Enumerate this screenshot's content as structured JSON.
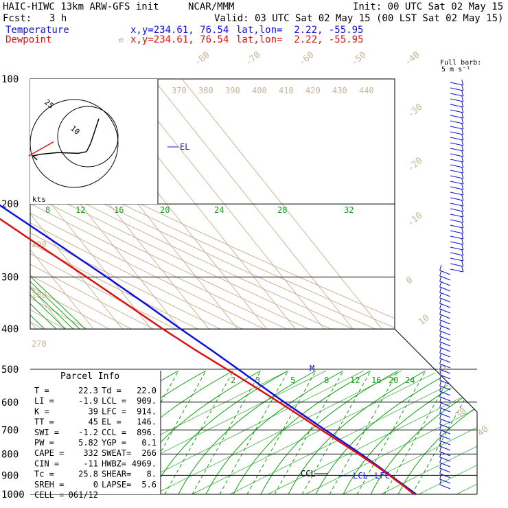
{
  "header": {
    "model": "HAIC-HIWC 13km ARW-GFS init",
    "org": "NCAR/MMM",
    "init": "Init: 00 UTC Sat 02 May 15",
    "fcst_label": "Fcst:",
    "fcst_value": "3 h",
    "valid": "Valid: 03 UTC Sat 02 May 15 (00 LST Sat 02 May 15)",
    "temp_label": "Temperature",
    "temp_xy": "x,y=234.61, 76.54",
    "temp_latlon": "lat,lon=  2.22, -55.95",
    "dew_label": "Dewpoint",
    "dew_marker": "☆",
    "dew_xy": "x,y=234.61, 76.54",
    "dew_latlon": "lat,lon=  2.22, -55.95"
  },
  "colors": {
    "temperature": "#e01010",
    "dewpoint": "#1010e0",
    "mixing_ratio": "#10a010",
    "dry_adiabat": "#c8b496",
    "isotherm": "#c8b496",
    "isobar": "#000000"
  },
  "barb_legend": {
    "line1": "Full barb:",
    "line2": "5 m s⁻¹"
  },
  "parcel": {
    "title": "Parcel Info",
    "rows": [
      [
        "T  =",
        "22.3",
        "Td =",
        "22.0"
      ],
      [
        "LI =",
        "-1.9",
        "LCL =",
        "909."
      ],
      [
        "K  =",
        "39",
        "LFC =",
        "914."
      ],
      [
        "TT =",
        "45",
        "EL  =",
        "146."
      ],
      [
        "SWI =",
        "-1.2",
        "CCL =",
        "896."
      ],
      [
        "PW =",
        "5.82",
        "YGP =",
        "0.1"
      ],
      [
        "CAPE =",
        "332",
        "SWEAT=",
        "266"
      ],
      [
        "CIN =",
        "-11",
        "HWBZ=",
        "4969."
      ],
      [
        "Tc =",
        "25.8",
        "SHEAR=",
        "8."
      ],
      [
        "SREH =",
        "0",
        "LAPSE=",
        "5.6"
      ],
      [
        "CELL =",
        "061/12",
        "",
        ""
      ]
    ]
  },
  "markers": {
    "el": "EL",
    "m": "M",
    "ccl": "CCL",
    "lcl": "LCL",
    "lfc": "LFC"
  },
  "hodograph": {
    "rings": [
      "25",
      "10"
    ],
    "unit": "kts"
  },
  "chart_data": {
    "type": "line",
    "title": "",
    "pressure_ticks": [
      "100",
      "200",
      "300",
      "400",
      "500",
      "600",
      "700",
      "800",
      "900",
      "1000"
    ],
    "isotherm_labels": [
      "-80",
      "-70",
      "-60",
      "-50",
      "-40",
      "-30",
      "-20",
      "-10",
      "0",
      "10",
      "20",
      "30",
      "40"
    ],
    "theta_labels_top": [
      "370",
      "380",
      "390",
      "400",
      "410",
      "420",
      "430",
      "440"
    ],
    "theta_labels_left": [
      "290",
      "280",
      "270"
    ],
    "mixing_upper_labels": [
      "8",
      "12",
      "16",
      "20",
      "24",
      "28",
      "32"
    ],
    "mixing_lower_labels": [
      "2",
      "3",
      "5",
      "8",
      "12",
      "16",
      "20",
      "24"
    ],
    "ylim": [
      1000,
      100
    ],
    "y_scale": "log-pressure",
    "series": [
      {
        "name": "Temperature",
        "points": [
          [
            1000,
            26.0
          ],
          [
            950,
            24.2
          ],
          [
            925,
            23.2
          ],
          [
            900,
            22.3
          ],
          [
            850,
            20.3
          ],
          [
            800,
            18.0
          ],
          [
            750,
            15.3
          ],
          [
            700,
            12.3
          ],
          [
            650,
            9.2
          ],
          [
            600,
            5.8
          ],
          [
            550,
            2.5
          ],
          [
            500,
            -1.0
          ],
          [
            450,
            -5.0
          ],
          [
            400,
            -9.8
          ],
          [
            350,
            -14.8
          ],
          [
            300,
            -21.0
          ],
          [
            250,
            -28.8
          ],
          [
            200,
            -38.5
          ],
          [
            175,
            -45.0
          ],
          [
            150,
            -52.0
          ],
          [
            125,
            -58.5
          ],
          [
            100,
            -60.0
          ]
        ]
      },
      {
        "name": "Dewpoint",
        "points": [
          [
            1000,
            25.3
          ],
          [
            950,
            23.8
          ],
          [
            925,
            22.8
          ],
          [
            900,
            22.0
          ],
          [
            850,
            19.8
          ],
          [
            800,
            17.2
          ],
          [
            750,
            14.2
          ],
          [
            700,
            11.0
          ],
          [
            650,
            7.7
          ],
          [
            600,
            4.0
          ],
          [
            550,
            -0.3
          ],
          [
            500,
            -5.0
          ],
          [
            450,
            -10.5
          ],
          [
            400,
            -16.0
          ],
          [
            350,
            -21.5
          ],
          [
            300,
            -28.0
          ],
          [
            250,
            -36.0
          ],
          [
            200,
            -45.5
          ],
          [
            175,
            -51.0
          ],
          [
            150,
            -57.0
          ],
          [
            125,
            -65.0
          ],
          [
            100,
            -72.0
          ]
        ]
      }
    ],
    "hodograph_trace_kts": [
      [
        -4.5,
        -2
      ],
      [
        -5,
        -1.5
      ],
      [
        -4,
        -1.3
      ],
      [
        -2,
        -1.1
      ],
      [
        0.5,
        -1.2
      ],
      [
        1.5,
        -1
      ],
      [
        2,
        0
      ],
      [
        2.5,
        1.5
      ],
      [
        3,
        3
      ]
    ],
    "storm_motion_kts": [
      [
        -5.5,
        -1.5
      ],
      [
        -2.5,
        0.2
      ]
    ]
  }
}
